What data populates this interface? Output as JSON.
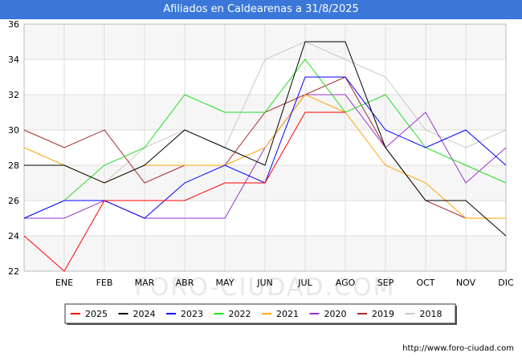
{
  "title": "Afiliados en Caldearenas a 31/8/2025",
  "credit": "http://www.foro-ciudad.com",
  "watermark": "FORO-CIUDAD.COM",
  "chart_data": {
    "type": "line",
    "categories": [
      "",
      "ENE",
      "FEB",
      "MAR",
      "ABR",
      "MAY",
      "JUN",
      "JUL",
      "AGO",
      "SEP",
      "OCT",
      "NOV",
      "DIC"
    ],
    "ylim": [
      22,
      36
    ],
    "yticks": [
      22,
      24,
      26,
      28,
      30,
      32,
      34,
      36
    ],
    "grid": true,
    "legend_position": "bottom",
    "series": [
      {
        "name": "2018",
        "color": "#c8c8c8",
        "values": [
          null,
          null,
          27,
          29,
          30,
          29,
          34,
          35,
          34,
          33,
          30,
          29,
          30
        ]
      },
      {
        "name": "2019",
        "color": "#a52a2a",
        "values": [
          30,
          29,
          30,
          27,
          28,
          28,
          31,
          32,
          33,
          29,
          26,
          25,
          25
        ]
      },
      {
        "name": "2020",
        "color": "#9932cc",
        "values": [
          25,
          25,
          26,
          25,
          25,
          25,
          29,
          32,
          32,
          29,
          31,
          27,
          29
        ]
      },
      {
        "name": "2021",
        "color": "#ffa500",
        "values": [
          29,
          28,
          27,
          28,
          28,
          28,
          29,
          32,
          31,
          28,
          27,
          25,
          25
        ]
      },
      {
        "name": "2022",
        "color": "#22dd22",
        "values": [
          25,
          26,
          28,
          29,
          32,
          31,
          31,
          34,
          31,
          32,
          29,
          28,
          27
        ]
      },
      {
        "name": "2023",
        "color": "#0000ff",
        "values": [
          25,
          26,
          26,
          25,
          27,
          28,
          27,
          33,
          33,
          30,
          29,
          30,
          28
        ]
      },
      {
        "name": "2024",
        "color": "#000000",
        "values": [
          28,
          28,
          27,
          28,
          30,
          29,
          28,
          35,
          35,
          29,
          26,
          26,
          24
        ]
      },
      {
        "name": "2025",
        "color": "#ff0000",
        "values": [
          24,
          22,
          26,
          26,
          26,
          27,
          27,
          31,
          31,
          null,
          null,
          null,
          null
        ]
      }
    ],
    "legend_order": [
      "2025",
      "2024",
      "2023",
      "2022",
      "2021",
      "2020",
      "2019",
      "2018"
    ]
  }
}
